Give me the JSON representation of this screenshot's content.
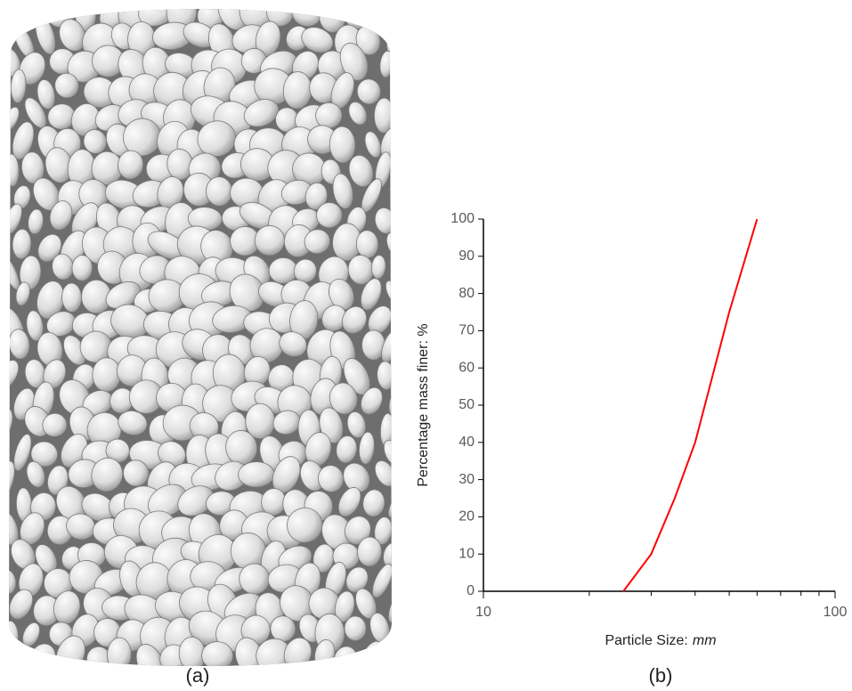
{
  "captions": [
    "(a)",
    "(b)"
  ],
  "chart_data": {
    "type": "line",
    "xlabel": [
      "Particle Size:",
      "mm"
    ],
    "ylabel": "Percentage mass finer: %",
    "xscale": "log",
    "xlim": [
      10,
      100
    ],
    "xticks": [
      10,
      100
    ],
    "xminorticks": [
      20,
      30,
      40,
      50,
      60,
      70,
      80,
      90
    ],
    "ylim": [
      0,
      100
    ],
    "yticks": [
      0,
      10,
      20,
      30,
      40,
      50,
      60,
      70,
      80,
      90,
      100
    ],
    "grid": false,
    "series": [
      {
        "color": "#ff0000",
        "x": [
          25,
          30,
          35,
          40,
          50,
          60
        ],
        "values": [
          0,
          10,
          25,
          40,
          75,
          100
        ]
      }
    ]
  }
}
